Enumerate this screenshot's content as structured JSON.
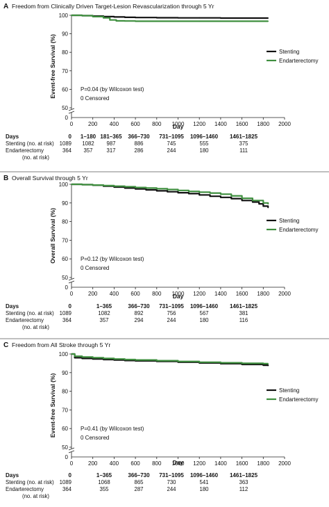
{
  "chart_data": [
    {
      "type": "line",
      "panel_letter": "A",
      "title": "Freedom from Clinically Driven Target-Lesion Revascularization through 5 Yr",
      "xlabel": "Day",
      "ylabel": "Event-free Survival (%)",
      "xlim": [
        0,
        2000
      ],
      "ylim": [
        50,
        100
      ],
      "x_ticks": [
        0,
        200,
        400,
        600,
        800,
        1000,
        1200,
        1400,
        1600,
        1800,
        2000
      ],
      "y_ticks": [
        50,
        60,
        70,
        80,
        90,
        100
      ],
      "y_tick_labels": [
        "50",
        "60",
        "70",
        "80",
        "90",
        "100"
      ],
      "axis_break_label": "0",
      "grid": false,
      "legend_position": "right",
      "annotation_lines": [
        "P=0.04 (by Wilcoxon test)",
        "0 Censored"
      ],
      "series": [
        {
          "name": "Stenting",
          "color": "#111111",
          "x": [
            0,
            100,
            200,
            300,
            400,
            500,
            600,
            800,
            1000,
            1200,
            1400,
            1600,
            1845
          ],
          "y": [
            100,
            99.8,
            99.6,
            99.3,
            99.1,
            98.9,
            98.8,
            98.7,
            98.6,
            98.6,
            98.5,
            98.5,
            98.5
          ]
        },
        {
          "name": "Endarterectomy",
          "color": "#3f8f3f",
          "x": [
            0,
            100,
            200,
            300,
            360,
            420,
            500,
            600,
            800,
            1000,
            1200,
            1400,
            1600,
            1845
          ],
          "y": [
            100,
            99.8,
            99.3,
            98.6,
            97.5,
            97.0,
            96.9,
            96.8,
            96.8,
            96.8,
            96.8,
            96.8,
            96.8,
            96.8
          ]
        }
      ],
      "risk_table": {
        "header": [
          "Days",
          "0",
          "1–180",
          "181–365",
          "366–730",
          "731–1095",
          "1096–1460",
          "1461–1825"
        ],
        "rows": [
          {
            "label_lines": [
              "Stenting (no. at risk)"
            ],
            "values": [
              "1089",
              "1082",
              "987",
              "886",
              "745",
              "555",
              "375"
            ]
          },
          {
            "label_lines": [
              "Endarterectomy",
              "(no. at risk)"
            ],
            "values": [
              "364",
              "357",
              "317",
              "286",
              "244",
              "180",
              "111"
            ]
          }
        ]
      }
    },
    {
      "type": "line",
      "panel_letter": "B",
      "title": "Overall Survival through 5 Yr",
      "xlabel": "Day",
      "ylabel": "Overall Survival (%)",
      "xlim": [
        0,
        2000
      ],
      "ylim": [
        50,
        100
      ],
      "x_ticks": [
        0,
        200,
        400,
        600,
        800,
        1000,
        1200,
        1400,
        1600,
        1800,
        2000
      ],
      "y_ticks": [
        50,
        60,
        70,
        80,
        90,
        100
      ],
      "y_tick_labels": [
        "50",
        "60",
        "70",
        "80",
        "90",
        "100"
      ],
      "axis_break_label": "0",
      "grid": false,
      "legend_position": "right",
      "annotation_lines": [
        "P=0.12 (by Wilcoxon test)",
        "0 Censored"
      ],
      "series": [
        {
          "name": "Stenting",
          "color": "#111111",
          "x": [
            0,
            100,
            200,
            300,
            400,
            500,
            600,
            700,
            800,
            900,
            1000,
            1100,
            1200,
            1300,
            1400,
            1500,
            1600,
            1700,
            1760,
            1800,
            1845
          ],
          "y": [
            100,
            99.8,
            99.5,
            99.0,
            98.5,
            98.0,
            97.5,
            97.0,
            96.5,
            96.0,
            95.5,
            95.0,
            94.3,
            93.6,
            93.0,
            92.3,
            91.3,
            90.5,
            89.5,
            88.3,
            87.5
          ]
        },
        {
          "name": "Endarterectomy",
          "color": "#3f8f3f",
          "x": [
            0,
            100,
            200,
            300,
            400,
            500,
            600,
            700,
            800,
            900,
            1000,
            1100,
            1200,
            1300,
            1400,
            1500,
            1600,
            1700,
            1800,
            1845
          ],
          "y": [
            100,
            99.8,
            99.6,
            99.3,
            99.0,
            98.7,
            98.3,
            98.0,
            97.6,
            97.2,
            96.7,
            96.2,
            95.8,
            95.3,
            94.7,
            93.8,
            92.5,
            91.3,
            90.0,
            89.5
          ]
        }
      ],
      "risk_table": {
        "header": [
          "Days",
          "0",
          "1–365",
          "366–730",
          "731–1095",
          "1096–1460",
          "1461–1825"
        ],
        "rows": [
          {
            "label_lines": [
              "Stenting (no. at risk)"
            ],
            "values": [
              "1089",
              "1082",
              "892",
              "756",
              "567",
              "381"
            ]
          },
          {
            "label_lines": [
              "Endarterectomy",
              "(no. at risk)"
            ],
            "values": [
              "364",
              "357",
              "294",
              "244",
              "180",
              "116"
            ]
          }
        ]
      }
    },
    {
      "type": "line",
      "panel_letter": "C",
      "title": "Freedom from All Stroke through 5 Yr",
      "xlabel": "Day",
      "ylabel": "Event-free Survival (%)",
      "xlim": [
        0,
        2000
      ],
      "ylim": [
        50,
        100
      ],
      "x_ticks": [
        0,
        200,
        400,
        600,
        800,
        1000,
        1200,
        1400,
        1600,
        1800,
        2000
      ],
      "y_ticks": [
        50,
        60,
        70,
        80,
        90,
        100
      ],
      "y_tick_labels": [
        "50",
        "60",
        "70",
        "80",
        "90",
        "100"
      ],
      "axis_break_label": "0",
      "grid": false,
      "legend_position": "right",
      "annotation_lines": [
        "P=0.41 (by Wilcoxon test)",
        "0 Censored"
      ],
      "series": [
        {
          "name": "Stenting",
          "color": "#111111",
          "x": [
            0,
            30,
            100,
            200,
            300,
            400,
            500,
            600,
            800,
            1000,
            1200,
            1400,
            1600,
            1800,
            1845
          ],
          "y": [
            100,
            98.0,
            97.6,
            97.3,
            97.0,
            96.8,
            96.5,
            96.3,
            96.0,
            95.6,
            95.2,
            94.8,
            94.4,
            94.0,
            93.8
          ]
        },
        {
          "name": "Endarterectomy",
          "color": "#3f8f3f",
          "x": [
            0,
            30,
            100,
            200,
            300,
            400,
            500,
            600,
            800,
            1000,
            1200,
            1400,
            1600,
            1800,
            1845
          ],
          "y": [
            100,
            98.8,
            98.4,
            98.0,
            97.6,
            97.3,
            97.0,
            96.8,
            96.4,
            96.0,
            95.6,
            95.3,
            95.0,
            94.8,
            94.8
          ]
        }
      ],
      "risk_table": {
        "header": [
          "Days",
          "0",
          "1–365",
          "366–730",
          "731–1095",
          "1096–1460",
          "1461–1825"
        ],
        "rows": [
          {
            "label_lines": [
              "Stenting (no. at risk)"
            ],
            "values": [
              "1089",
              "1068",
              "865",
              "730",
              "541",
              "363"
            ]
          },
          {
            "label_lines": [
              "Endarterectomy",
              "(no. at risk)"
            ],
            "values": [
              "364",
              "355",
              "287",
              "244",
              "180",
              "112"
            ]
          }
        ]
      }
    }
  ]
}
